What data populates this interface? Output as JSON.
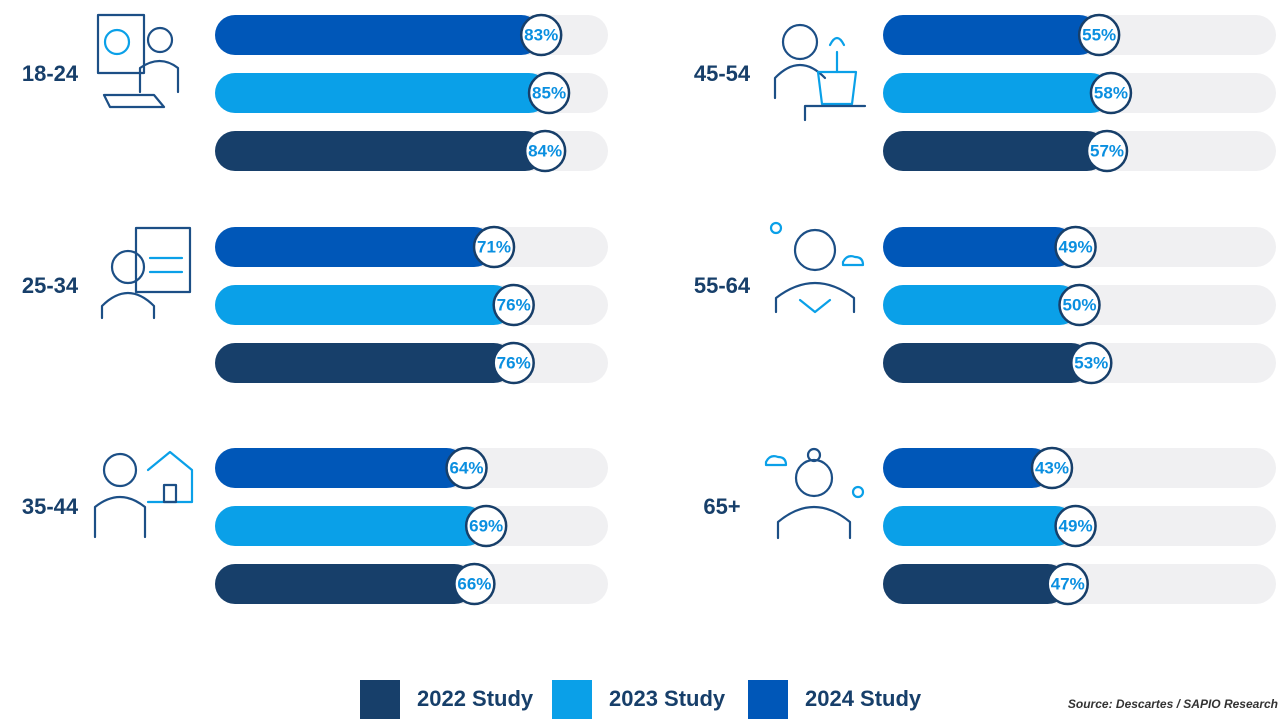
{
  "chart_data": {
    "type": "bar",
    "categories": [
      "18-24",
      "25-34",
      "35-44",
      "45-54",
      "55-64",
      "65+"
    ],
    "series": [
      {
        "name": "2022 Study",
        "color": "#173f6a",
        "values": [
          84,
          76,
          66,
          57,
          53,
          47
        ],
        "value_labels": [
          "84%",
          "76%",
          "66%",
          "57%",
          "53%",
          "47%"
        ]
      },
      {
        "name": "2023 Study",
        "color": "#0aa0e8",
        "values": [
          85,
          76,
          69,
          58,
          50,
          49
        ],
        "value_labels": [
          "85%",
          "76%",
          "69%",
          "58%",
          "50%",
          "49%"
        ]
      },
      {
        "name": "2024 Study",
        "color": "#0057b8",
        "values": [
          83,
          71,
          64,
          55,
          49,
          43
        ],
        "value_labels": [
          "83%",
          "71%",
          "64%",
          "55%",
          "49%",
          "43%"
        ]
      }
    ],
    "xlim": [
      0,
      100
    ],
    "source": "Source: Descartes / SAPIO Research"
  }
}
